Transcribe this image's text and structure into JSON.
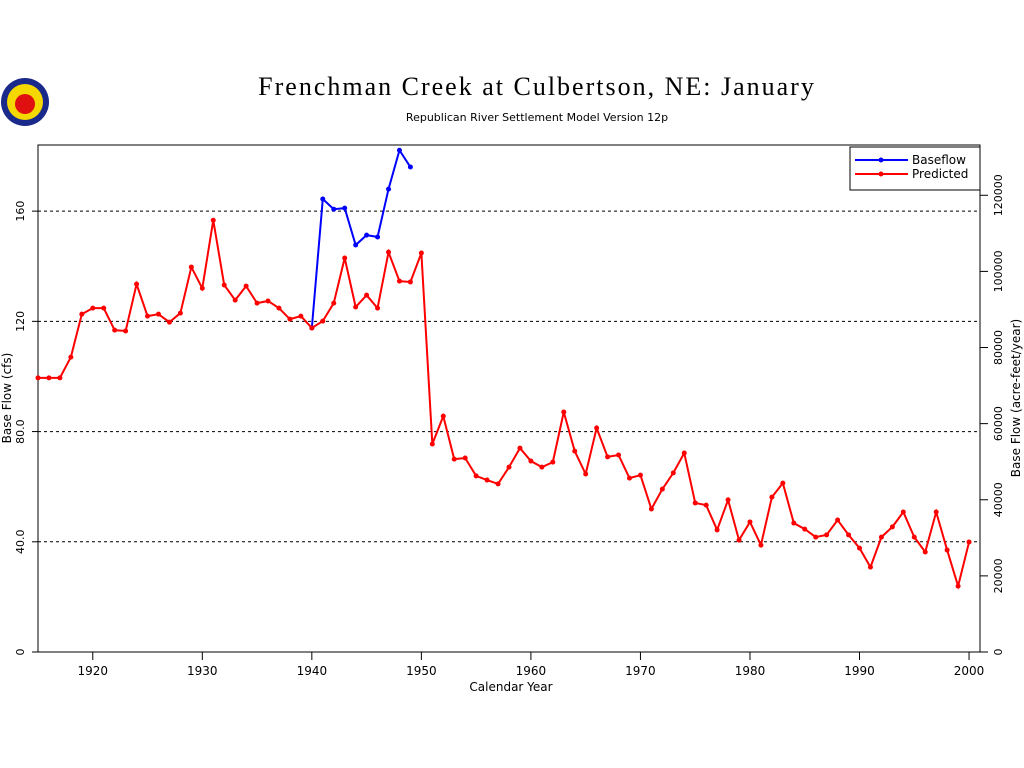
{
  "chart_data": {
    "type": "line",
    "title": "Frenchman Creek at Culbertson, NE: January",
    "subtitle": "Republican River Settlement Model Version 12p",
    "x_label": "Calendar Year",
    "y_label": "Base Flow (cfs)",
    "y2_label": "Base Flow (acre-feet/year)",
    "x": [
      1915,
      1916,
      1917,
      1918,
      1919,
      1920,
      1921,
      1922,
      1923,
      1924,
      1925,
      1926,
      1927,
      1928,
      1929,
      1930,
      1931,
      1932,
      1933,
      1934,
      1935,
      1936,
      1937,
      1938,
      1939,
      1940,
      1941,
      1942,
      1943,
      1944,
      1945,
      1946,
      1947,
      1948,
      1949,
      1950,
      1951,
      1952,
      1953,
      1954,
      1955,
      1956,
      1957,
      1958,
      1959,
      1960,
      1961,
      1962,
      1963,
      1964,
      1965,
      1966,
      1967,
      1968,
      1969,
      1970,
      1971,
      1972,
      1973,
      1974,
      1975,
      1976,
      1977,
      1978,
      1979,
      1980,
      1981,
      1982,
      1983,
      1984,
      1985,
      1986,
      1987,
      1988,
      1989,
      1990,
      1991,
      1992,
      1993,
      1994,
      1995,
      1996,
      1997,
      1998,
      1999,
      2000
    ],
    "series": [
      {
        "name": "Baseflow",
        "color": "#0000ff",
        "values": [
          null,
          null,
          null,
          null,
          null,
          null,
          null,
          null,
          null,
          null,
          null,
          null,
          null,
          null,
          null,
          null,
          null,
          null,
          null,
          null,
          null,
          null,
          null,
          null,
          null,
          117.6,
          164.4,
          160.7,
          161.1,
          147.7,
          151.3,
          150.6,
          168,
          182.1,
          176,
          null,
          null,
          null,
          null,
          null,
          null,
          null,
          null,
          null,
          null,
          null,
          null,
          null,
          null,
          null,
          null,
          null,
          null,
          null,
          null,
          null,
          null,
          null,
          null,
          null,
          null,
          null,
          null,
          null,
          null,
          null,
          null,
          null,
          null,
          null,
          null,
          null,
          null,
          null,
          null,
          null,
          null,
          null,
          null,
          null,
          null,
          null,
          null,
          null,
          null,
          null
        ]
      },
      {
        "name": "Predicted",
        "color": "#ff0000",
        "values": [
          99.5,
          99.5,
          99.5,
          107,
          122.6,
          124.8,
          124.8,
          116.8,
          116.5,
          133.5,
          121.9,
          122.6,
          119.7,
          123,
          139.7,
          132,
          156.7,
          133.2,
          127.7,
          132.8,
          126.6,
          127.4,
          124.8,
          120.8,
          121.9,
          117.6,
          120.1,
          126.6,
          143,
          125.2,
          129.5,
          124.8,
          145.1,
          134.6,
          134.3,
          144.8,
          75.5,
          85.6,
          70,
          70.4,
          63.9,
          62.4,
          61,
          67.1,
          74,
          69.3,
          67.1,
          68.9,
          87.1,
          72.9,
          64.6,
          81.3,
          70.8,
          71.5,
          63.1,
          64.2,
          51.9,
          59.1,
          65,
          72.2,
          54.1,
          53.3,
          44.3,
          55.2,
          40.6,
          47.2,
          38.8,
          56.2,
          61.3,
          46.8,
          44.6,
          41.7,
          42.5,
          47.9,
          42.5,
          37.7,
          30.8,
          41.7,
          45.4,
          50.8,
          41.7,
          36.3,
          50.8,
          37,
          23.9,
          39.9
        ]
      }
    ],
    "xlim": [
      1915,
      2001
    ],
    "xticks": [
      1920,
      1930,
      1940,
      1950,
      1960,
      1970,
      1980,
      1990,
      2000
    ],
    "ylim": [
      0,
      184
    ],
    "yticks": [
      0,
      {
        "value": 40,
        "label": "40.0"
      },
      {
        "value": 80,
        "label": "80.0"
      },
      120,
      160
    ],
    "y2lim": [
      0,
      133210
    ],
    "y2ticks": [
      0,
      20000,
      40000,
      60000,
      80000,
      100000,
      120000
    ],
    "grid": true,
    "legend": "upper right"
  }
}
